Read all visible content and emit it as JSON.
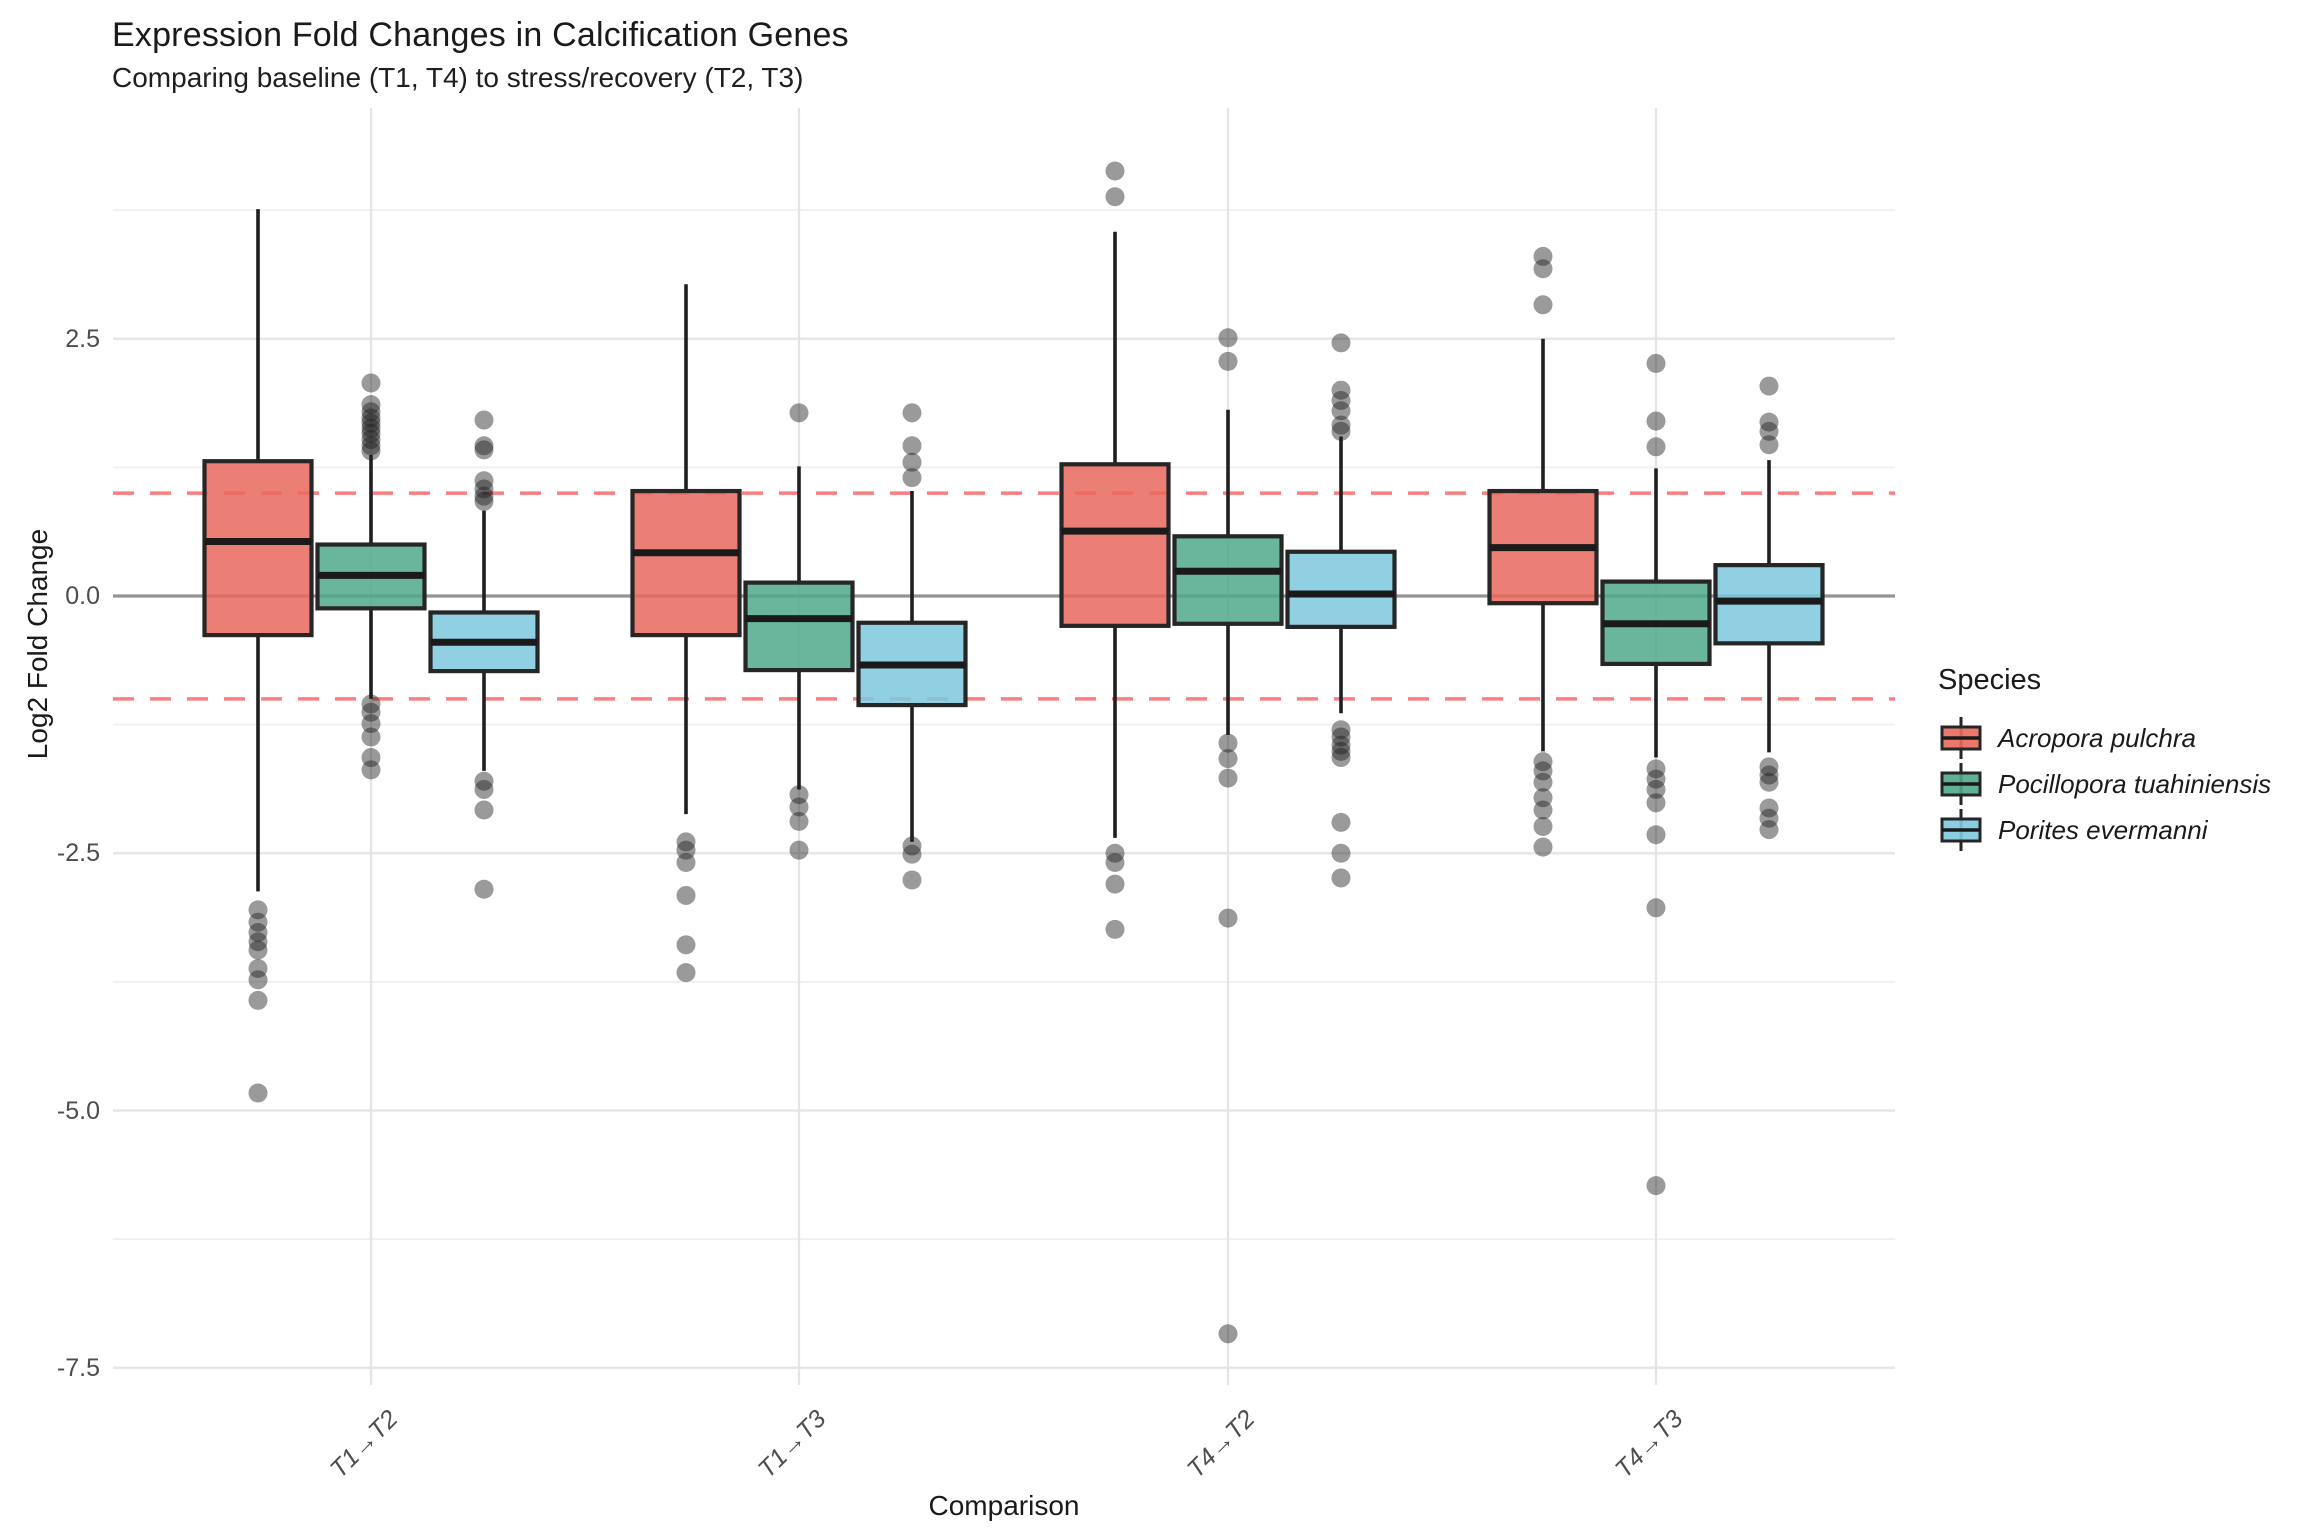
{
  "chart": {
    "title": "Expression Fold Changes in Calcification Genes",
    "subtitle": "Comparing baseline (T1, T4) to stress/recovery (T2, T3)",
    "xlabel": "Comparison",
    "ylabel": "Log2 Fold Change",
    "legend_title": "Species"
  },
  "chart_data": {
    "type": "boxplot",
    "title": "Expression Fold Changes in Calcification Genes",
    "subtitle": "Comparing baseline (T1, T4) to stress/recovery (T2, T3)",
    "xlabel": "Comparison",
    "ylabel": "Log2 Fold Change",
    "categories": [
      "T1→T2",
      "T1→T3",
      "T4→T2",
      "T4→T3"
    ],
    "y_ticks": [
      2.5,
      0.0,
      -2.5,
      -5.0,
      -7.5
    ],
    "y_minor_gridlines": [
      3.75,
      1.25,
      -1.25,
      -3.75,
      -6.25
    ],
    "ylim": [
      -7.7,
      4.75
    ],
    "grid_on": true,
    "legend_position": "right",
    "reference_lines": {
      "solid": [
        0
      ],
      "solid_color": "#949494",
      "dashed": [
        1,
        -1
      ],
      "dashed_color": "#FB5A5E"
    },
    "colors": {
      "grid_major": "#E4E4E4",
      "grid_minor": "#F0F0F0",
      "box_stroke": "#262626",
      "outlier": "#1f1f1f"
    },
    "legend": {
      "title": "Species",
      "entries": [
        "Acropora pulchra",
        "Pocillopora tuahiniensis",
        "Porites evermanni"
      ]
    },
    "series": [
      {
        "name": "Acropora pulchra",
        "color": "#E8695D",
        "boxes": [
          {
            "category": "T1→T2",
            "whisker_low": -2.87,
            "q1": -0.38,
            "median": 0.53,
            "q3": 1.31,
            "whisker_high": 3.76,
            "outliers": [
              -3.05,
              -3.17,
              -3.27,
              -3.36,
              -3.44,
              -3.62,
              -3.73,
              -3.93,
              -4.83
            ]
          },
          {
            "category": "T1→T3",
            "whisker_low": -2.12,
            "q1": -0.38,
            "median": 0.42,
            "q3": 1.02,
            "whisker_high": 3.03,
            "outliers": [
              -2.39,
              -2.47,
              -2.59,
              -2.91,
              -3.39,
              -3.66
            ]
          },
          {
            "category": "T4→T2",
            "whisker_low": -2.35,
            "q1": -0.29,
            "median": 0.63,
            "q3": 1.28,
            "whisker_high": 3.54,
            "outliers": [
              4.13,
              3.88,
              -2.5,
              -2.59,
              -2.8,
              -3.24
            ]
          },
          {
            "category": "T4→T3",
            "whisker_low": -1.51,
            "q1": -0.07,
            "median": 0.47,
            "q3": 1.02,
            "whisker_high": 2.5,
            "outliers": [
              3.3,
              3.18,
              2.83,
              -1.61,
              -1.7,
              -1.81,
              -1.96,
              -2.08,
              -2.24,
              -2.44
            ]
          }
        ]
      },
      {
        "name": "Pocillopora tuahiniensis",
        "color": "#4FA98C",
        "boxes": [
          {
            "category": "T1→T2",
            "whisker_low": -1.0,
            "q1": -0.12,
            "median": 0.2,
            "q3": 0.5,
            "whisker_high": 1.37,
            "outliers": [
              2.07,
              1.86,
              1.79,
              1.73,
              1.68,
              1.63,
              1.58,
              1.52,
              1.46,
              1.41,
              -1.05,
              -1.13,
              -1.24,
              -1.37,
              -1.57,
              -1.69
            ]
          },
          {
            "category": "T1→T3",
            "whisker_low": -1.88,
            "q1": -0.72,
            "median": -0.22,
            "q3": 0.13,
            "whisker_high": 1.26,
            "outliers": [
              1.78,
              -1.93,
              -2.05,
              -2.19,
              -2.47
            ]
          },
          {
            "category": "T4→T2",
            "whisker_low": -1.35,
            "q1": -0.27,
            "median": 0.24,
            "q3": 0.58,
            "whisker_high": 1.81,
            "outliers": [
              2.51,
              2.28,
              -1.43,
              -1.58,
              -1.77,
              -3.13,
              -7.17
            ]
          },
          {
            "category": "T4→T3",
            "whisker_low": -1.57,
            "q1": -0.66,
            "median": -0.27,
            "q3": 0.14,
            "whisker_high": 1.24,
            "outliers": [
              2.26,
              1.7,
              1.45,
              -1.68,
              -1.78,
              -1.88,
              -2.01,
              -2.32,
              -3.03,
              -5.73
            ]
          }
        ]
      },
      {
        "name": "Porites evermanni",
        "color": "#7EC8DE",
        "boxes": [
          {
            "category": "T1→T2",
            "whisker_low": -1.7,
            "q1": -0.73,
            "median": -0.45,
            "q3": -0.16,
            "whisker_high": 0.83,
            "outliers": [
              1.71,
              1.46,
              1.42,
              1.12,
              1.04,
              0.97,
              0.92,
              -1.8,
              -1.88,
              -2.08,
              -2.85
            ]
          },
          {
            "category": "T1→T3",
            "whisker_low": -2.39,
            "q1": -1.06,
            "median": -0.67,
            "q3": -0.26,
            "whisker_high": 1.02,
            "outliers": [
              1.78,
              1.46,
              1.3,
              1.15,
              -2.43,
              -2.51,
              -2.76
            ]
          },
          {
            "category": "T4→T2",
            "whisker_low": -1.14,
            "q1": -0.3,
            "median": 0.02,
            "q3": 0.43,
            "whisker_high": 1.55,
            "outliers": [
              2.46,
              2.0,
              1.9,
              1.8,
              1.66,
              1.6,
              -1.3,
              -1.37,
              -1.45,
              -1.51,
              -1.57,
              -2.2,
              -2.5,
              -2.74
            ]
          },
          {
            "category": "T4→T3",
            "whisker_low": -1.52,
            "q1": -0.46,
            "median": -0.05,
            "q3": 0.3,
            "whisker_high": 1.32,
            "outliers": [
              2.04,
              1.69,
              1.6,
              1.47,
              -1.66,
              -1.74,
              -1.81,
              -2.06,
              -2.16,
              -2.27
            ]
          }
        ]
      }
    ]
  }
}
